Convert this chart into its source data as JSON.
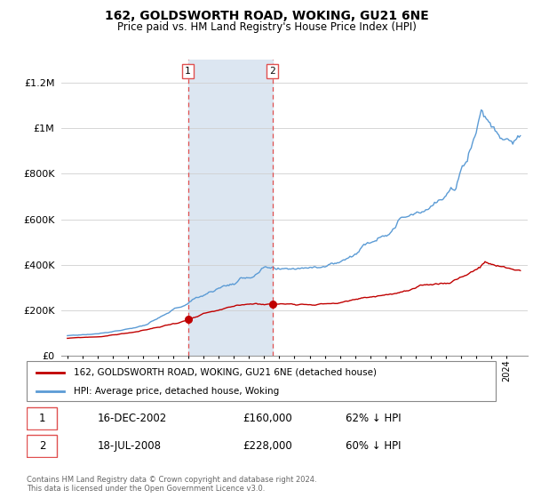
{
  "title": "162, GOLDSWORTH ROAD, WOKING, GU21 6NE",
  "subtitle": "Price paid vs. HM Land Registry's House Price Index (HPI)",
  "legend_line1": "162, GOLDSWORTH ROAD, WOKING, GU21 6NE (detached house)",
  "legend_line2": "HPI: Average price, detached house, Woking",
  "footnote": "Contains HM Land Registry data © Crown copyright and database right 2024.\nThis data is licensed under the Open Government Licence v3.0.",
  "transaction1_date": "16-DEC-2002",
  "transaction1_price": "£160,000",
  "transaction1_hpi": "62% ↓ HPI",
  "transaction2_date": "18-JUL-2008",
  "transaction2_price": "£228,000",
  "transaction2_hpi": "60% ↓ HPI",
  "vline1_x": 2002.96,
  "vline2_x": 2008.54,
  "marker1_x": 2002.96,
  "marker1_y": 160000,
  "marker2_x": 2008.54,
  "marker2_y": 228000,
  "hpi_color": "#5b9bd5",
  "price_color": "#c00000",
  "vline_color": "#e05050",
  "shade_color": "#dce6f1",
  "ylim": [
    0,
    1300000
  ],
  "yticks": [
    0,
    200000,
    400000,
    600000,
    800000,
    1000000,
    1200000
  ],
  "ytick_labels": [
    "£0",
    "£200K",
    "£400K",
    "£600K",
    "£800K",
    "£1M",
    "£1.2M"
  ],
  "xlim_left": 1994.6,
  "xlim_right": 2025.4
}
